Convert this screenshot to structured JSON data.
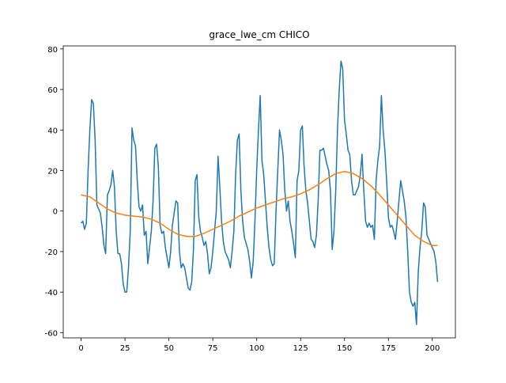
{
  "chart_data": {
    "type": "line",
    "title": "grace_lwe_cm CHICO",
    "xlim": [
      -10.15,
      213.15
    ],
    "ylim": [
      -62.6,
      81.5
    ],
    "xticks": [
      0,
      25,
      50,
      75,
      100,
      125,
      150,
      175,
      200
    ],
    "yticks": [
      -60,
      -40,
      -20,
      0,
      20,
      40,
      60,
      80
    ],
    "series": [
      {
        "color": "#1f77b4",
        "x": [
          0,
          1,
          2,
          3,
          4,
          5,
          6,
          7,
          8,
          9,
          10,
          11,
          12,
          13,
          14,
          15,
          16,
          17,
          18,
          19,
          20,
          21,
          22,
          23,
          24,
          25,
          26,
          27,
          28,
          29,
          30,
          31,
          32,
          33,
          34,
          35,
          36,
          37,
          38,
          39,
          40,
          41,
          42,
          43,
          44,
          45,
          46,
          47,
          48,
          49,
          50,
          51,
          52,
          53,
          54,
          55,
          56,
          57,
          58,
          59,
          60,
          61,
          62,
          63,
          64,
          65,
          66,
          67,
          68,
          69,
          70,
          71,
          72,
          73,
          74,
          75,
          76,
          77,
          78,
          79,
          80,
          81,
          82,
          83,
          84,
          85,
          86,
          87,
          88,
          89,
          90,
          91,
          92,
          93,
          94,
          95,
          96,
          97,
          98,
          99,
          100,
          101,
          102,
          103,
          104,
          105,
          106,
          107,
          108,
          109,
          110,
          111,
          112,
          113,
          114,
          115,
          116,
          117,
          118,
          119,
          120,
          121,
          122,
          123,
          124,
          125,
          126,
          127,
          128,
          129,
          130,
          131,
          132,
          133,
          134,
          135,
          136,
          137,
          138,
          139,
          140,
          141,
          142,
          143,
          144,
          145,
          146,
          147,
          148,
          149,
          150,
          151,
          152,
          153,
          154,
          155,
          156,
          157,
          158,
          159,
          160,
          161,
          162,
          163,
          164,
          165,
          166,
          167,
          168,
          169,
          170,
          171,
          172,
          173,
          174,
          175,
          176,
          177,
          178,
          179,
          180,
          181,
          182,
          183,
          184,
          185,
          186,
          187,
          188,
          189,
          190,
          191,
          192,
          193,
          194,
          195,
          196,
          197,
          198,
          199,
          200,
          201,
          202,
          203
        ],
        "values": [
          -6,
          -5,
          -9,
          -6,
          20,
          40,
          55,
          53,
          35,
          3,
          1,
          -1,
          -8,
          -17,
          -21,
          8,
          10,
          13,
          20,
          12,
          -10,
          -21,
          -21,
          -26,
          -36,
          -40,
          -40,
          -28,
          -10,
          41,
          35,
          32,
          15,
          2,
          0,
          3,
          -12,
          -10,
          -26,
          -18,
          -10,
          5,
          31,
          33,
          22,
          -7,
          -11,
          -10,
          -18,
          -23,
          -28,
          -20,
          -7,
          -1,
          5,
          4,
          -20,
          -28,
          -26,
          -28,
          -33,
          -38,
          -39,
          -35,
          -19,
          15,
          18,
          -3,
          -10,
          -13,
          -17,
          -15,
          -21,
          -31,
          -28,
          -20,
          -10,
          0,
          27,
          12,
          -5,
          -15,
          -20,
          -22,
          -24,
          -28,
          -20,
          -10,
          18,
          35,
          38,
          10,
          -5,
          -13,
          -16,
          -19,
          -25,
          -33,
          -25,
          -5,
          20,
          40,
          57,
          25,
          18,
          5,
          -8,
          -18,
          -24,
          -27,
          -26,
          0,
          20,
          40,
          35,
          28,
          10,
          0,
          5,
          -5,
          -10,
          -16,
          -23,
          15,
          20,
          40,
          42,
          22,
          10,
          4,
          -5,
          -14,
          -15,
          -18,
          -12,
          5,
          30,
          30,
          31,
          27,
          23,
          20,
          10,
          -19,
          -10,
          10,
          40,
          60,
          74,
          70,
          45,
          38,
          30,
          28,
          15,
          8,
          8,
          10,
          12,
          18,
          28,
          10,
          -5,
          -8,
          -6,
          -8,
          -7,
          -14,
          15,
          25,
          32,
          57,
          40,
          30,
          15,
          -3,
          -8,
          -7,
          -10,
          -14,
          -5,
          5,
          15,
          10,
          5,
          -3,
          -20,
          -40,
          -45,
          -47,
          -45,
          -56,
          -30,
          -18,
          -10,
          4,
          2,
          -12,
          -14,
          -16,
          -18,
          -20,
          -25,
          -35
        ]
      },
      {
        "color": "#ff7f0e",
        "x": [
          0,
          5,
          10,
          15,
          20,
          25,
          30,
          35,
          40,
          45,
          50,
          55,
          60,
          65,
          70,
          75,
          80,
          85,
          90,
          95,
          100,
          105,
          110,
          115,
          120,
          125,
          130,
          135,
          140,
          145,
          150,
          155,
          160,
          165,
          170,
          175,
          180,
          185,
          190,
          195,
          200,
          203
        ],
        "values": [
          8,
          7,
          4,
          1,
          -1,
          -2,
          -2.5,
          -3,
          -4,
          -6,
          -9,
          -11.5,
          -12.5,
          -12.5,
          -11,
          -9,
          -7,
          -5,
          -2.5,
          -0.5,
          1.5,
          3,
          4.5,
          6,
          7,
          8.5,
          10.5,
          13,
          16,
          18.5,
          19.5,
          18.5,
          16,
          12.5,
          8,
          3,
          -2,
          -7,
          -12,
          -15,
          -17,
          -17
        ]
      }
    ]
  }
}
